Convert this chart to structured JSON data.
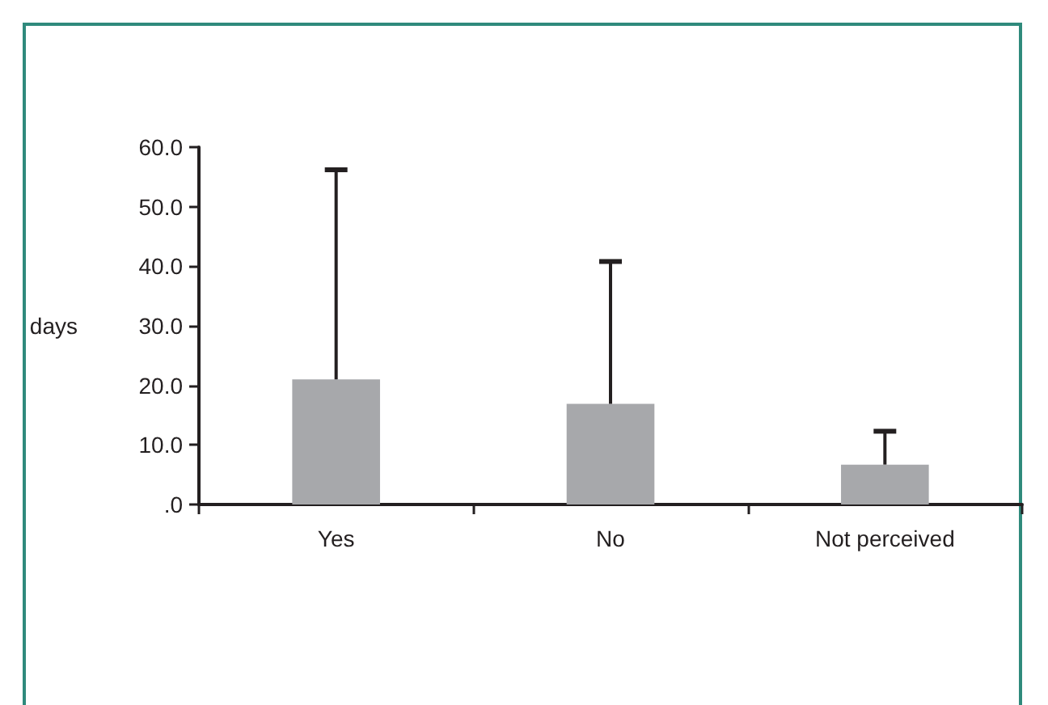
{
  "chart_data": {
    "type": "bar",
    "ylabel": "days",
    "categories": [
      "Yes",
      "No",
      "Not perceived"
    ],
    "values": [
      21.0,
      16.9,
      6.7
    ],
    "color": "#a7a8ab",
    "errors": [
      [
        21.0,
        56.2
      ],
      [
        16.9,
        40.8
      ],
      [
        6.7,
        12.3
      ]
    ],
    "ylim": [
      0,
      60
    ],
    "yticks": [
      {
        "value": 0,
        "label": ".0"
      },
      {
        "value": 10,
        "label": "10.0"
      },
      {
        "value": 20,
        "label": "20.0"
      },
      {
        "value": 30,
        "label": "30.0"
      },
      {
        "value": 40,
        "label": "40.0"
      },
      {
        "value": 50,
        "label": "50.0"
      },
      {
        "value": 60,
        "label": "60.0"
      }
    ],
    "grid": false
  }
}
